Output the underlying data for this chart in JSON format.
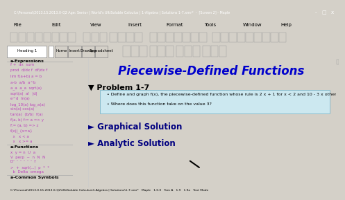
{
  "title": "Piecewise-Defined Functions",
  "title_color": "#0000CC",
  "title_fontsize": 12,
  "bg_toolbar": "#d4d0c8",
  "bg_left_panel": "#e8e8e8",
  "bg_content": "#ffffff",
  "problem_label": "▼ Problem 1-7",
  "box_text_line1": "• Define and graph f(x), the piecewise-defined function whose rule is 2 x + 1 for x < 2 and 10 - 3 x otherwise.",
  "box_text_line2": "• Where does this function take on the value 3?",
  "box_bg": "#cce8f0",
  "box_border": "#88bbcc",
  "section1": "► Graphical Solution",
  "section2": "► Analytic Solution",
  "section_color": "#000080",
  "lp_expressions": [
    "f +  dx  sum",
    "prod  d/dx f  df/dx f",
    "lim f(a+b) a = b",
    "a-b  a/b  a^b",
    "a_a  a_a  sqrt(a)",
    "sqrt(a)  a!  |d|",
    "e^d  ln(a)",
    "log_10(a) log_a(a)",
    "sin(a) cos(a)",
    "tan(a)  (b/b)  f(a)",
    "f(a, b) f:= a => y",
    "f:= (a, b) => z",
    "f(x)|_{x=a}",
    "  x   x < a",
    "  x   x >= a"
  ],
  "lp_functions_label": "a-Functions",
  "lp_expr_label": "a-Expressions",
  "lp_common_label": "a-Common Symbols",
  "titlebar_text": "C:\\Personal\\2013.15.2013.0-Q2 Age: Senior | World's UltiSoluble Calculus | 1-Algebra | Solutions 1-7.xmr*  -  [Screen 2] - Maple",
  "bottom_status": "C:\\Personal\\2013.0.15.2013.0-Q2\\UltiSoluble Calculus\\1-Algebra | Solutions\\1-7.xmr*   Maple   1.0.0   Tom A   1.9   1.9a   Text Mode",
  "menu_items": [
    "File",
    "Edit",
    "View",
    "Insert",
    "Format",
    "Tools",
    "Window",
    "Help"
  ],
  "tab_items": [
    "Home",
    "Insert",
    "Drawing",
    "Spreadsheet"
  ]
}
